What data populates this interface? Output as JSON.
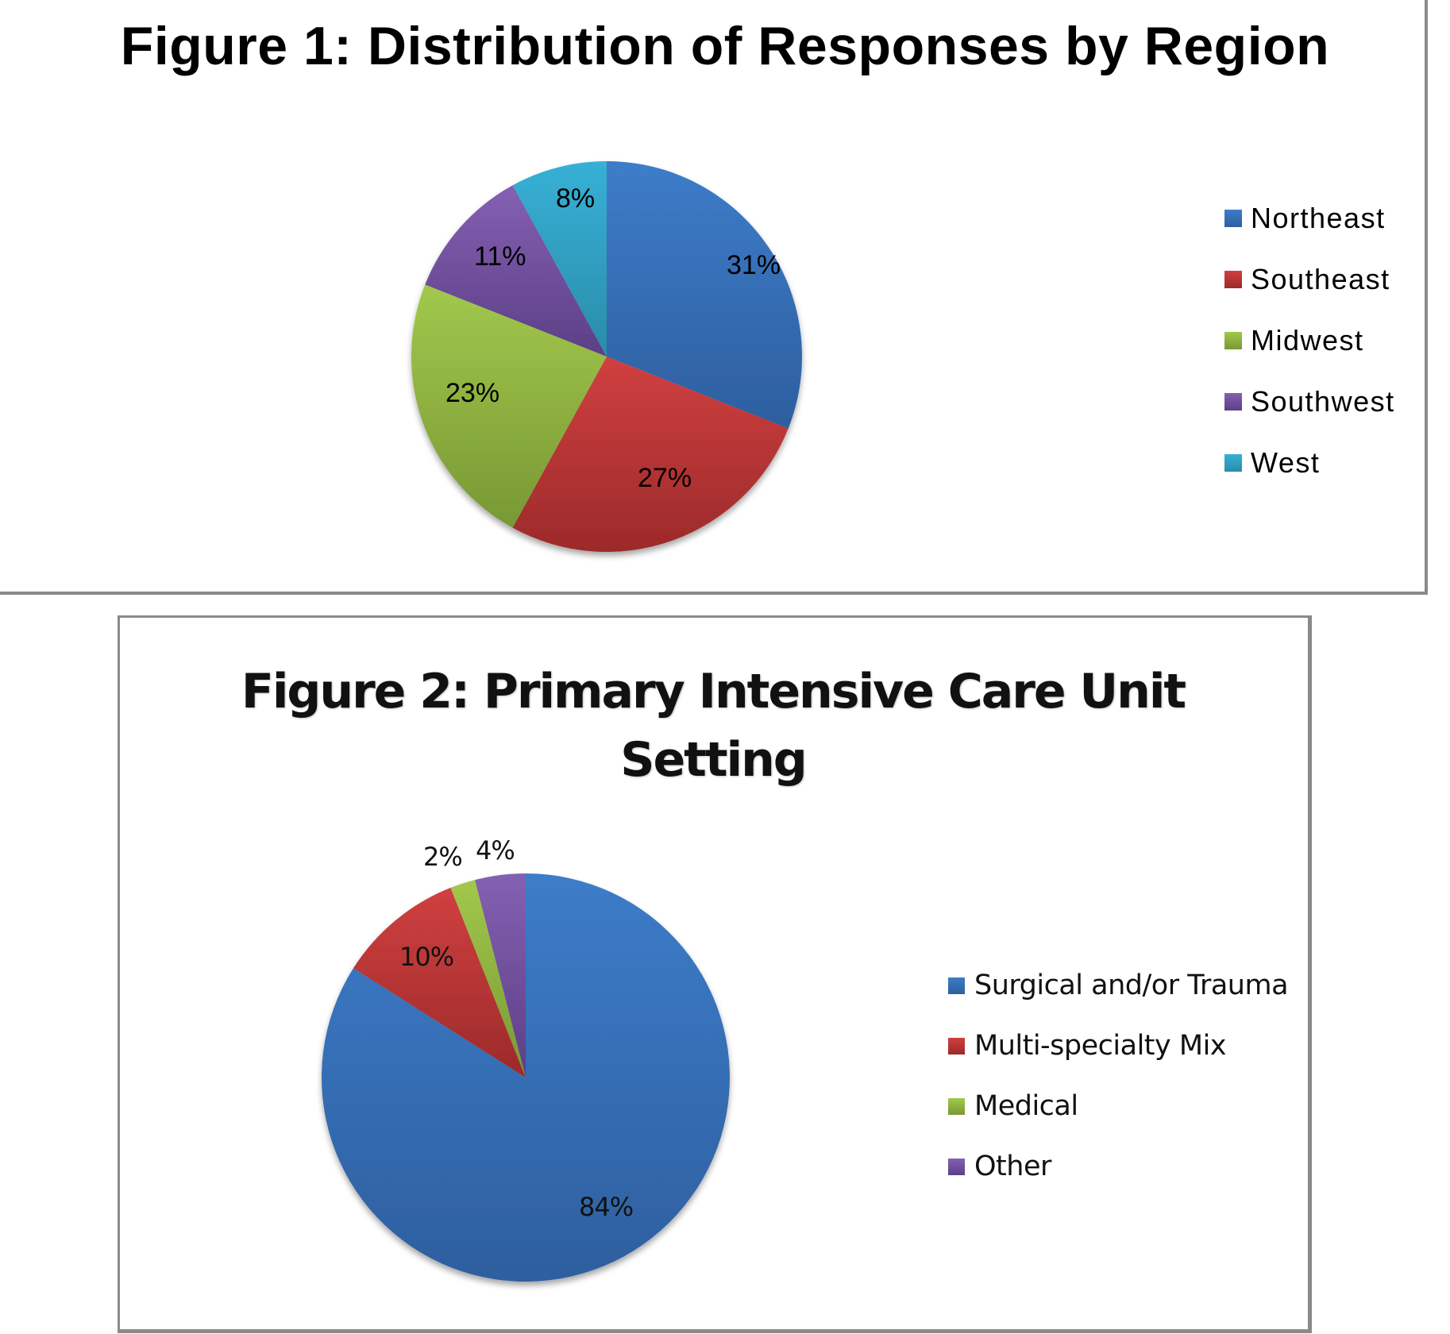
{
  "chart_data": [
    {
      "type": "pie",
      "title": "Figure 1: Distribution of Responses by Region",
      "categories": [
        "Northeast",
        "Southeast",
        "Midwest",
        "Southwest",
        "West"
      ],
      "values": [
        31,
        27,
        23,
        11,
        8
      ],
      "labels": [
        "31%",
        "27%",
        "23%",
        "11%",
        "8%"
      ],
      "colors": [
        "#3A78C3",
        "#C8393A",
        "#9BC14A",
        "#7D5AAB",
        "#35ABD1"
      ],
      "legend_position": "right",
      "start_angle": "12 o'clock, clockwise"
    },
    {
      "type": "pie",
      "title": "Figure 2: Primary Intensive Care Unit Setting",
      "categories": [
        "Surgical and/or Trauma",
        "Multi-specialty Mix",
        "Medical",
        "Other"
      ],
      "values": [
        84,
        10,
        2,
        4
      ],
      "labels": [
        "84%",
        "10%",
        "2%",
        "4%"
      ],
      "colors": [
        "#3A78C3",
        "#C8393A",
        "#9BC14A",
        "#7D5AAB"
      ],
      "legend_position": "right",
      "start_angle": "12 o'clock, clockwise"
    }
  ],
  "figure1": {
    "title": "Figure 1: Distribution of Responses by Region",
    "legend": [
      "Northeast",
      "Southeast",
      "Midwest",
      "Southwest",
      "West"
    ],
    "labels": [
      "31%",
      "27%",
      "23%",
      "11%",
      "8%"
    ]
  },
  "figure2": {
    "title_line1": "Figure 2: Primary Intensive Care Unit",
    "title_line2": "Setting",
    "legend": [
      "Surgical and/or Trauma",
      "Multi-specialty Mix",
      "Medical",
      "Other"
    ],
    "labels": [
      "84%",
      "10%",
      "2%",
      "4%"
    ]
  }
}
